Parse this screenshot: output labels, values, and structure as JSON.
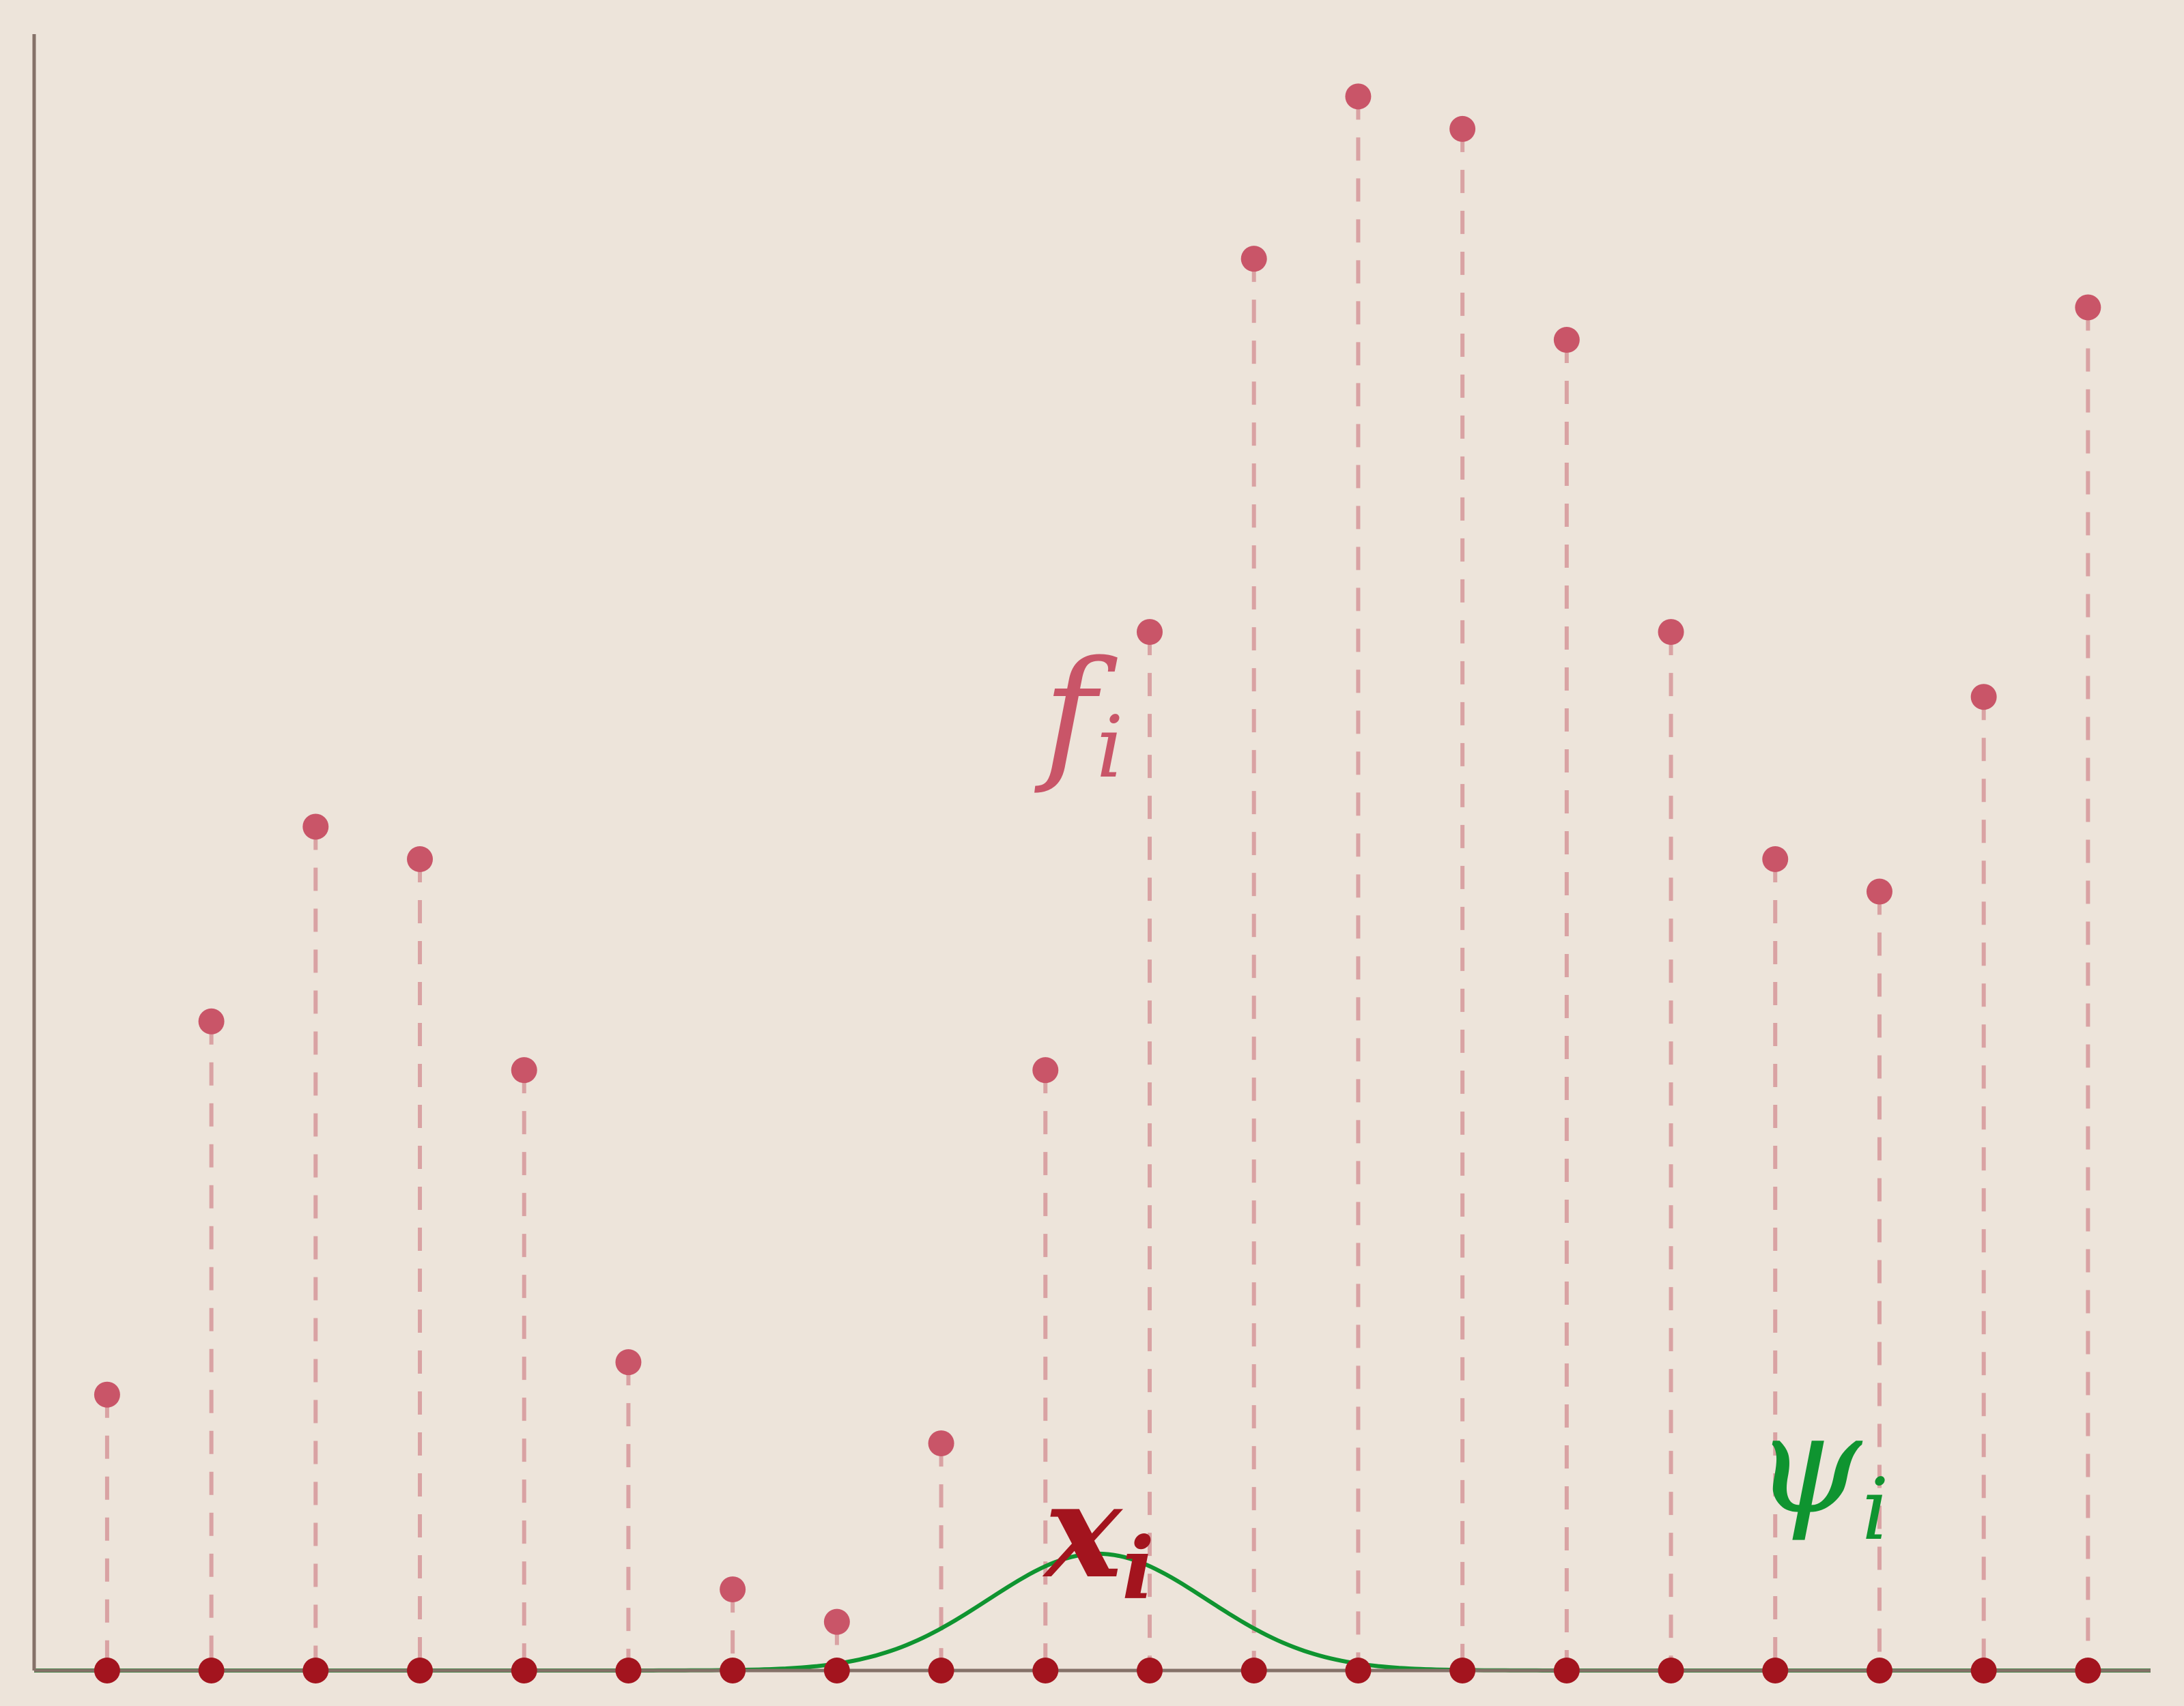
{
  "chart_data": {
    "type": "scatter",
    "title": "",
    "xlabel": "",
    "ylabel": "",
    "x": [
      1,
      2,
      3,
      4,
      5,
      6,
      7,
      8,
      9,
      10,
      11,
      12,
      13,
      14,
      15,
      16,
      17,
      18,
      19,
      20
    ],
    "xlim": [
      0.3,
      20.6
    ],
    "ylim": [
      0,
      1
    ],
    "series": [
      {
        "values": [
          0.17,
          0.4,
          0.52,
          0.5,
          0.37,
          0.19,
          0.05,
          0.03,
          0.14,
          0.37,
          0.64,
          0.87,
          0.97,
          0.95,
          0.82,
          0.64,
          0.5,
          0.48,
          0.6,
          0.84
        ]
      }
    ],
    "kernel": {
      "center": 10.5,
      "sigma": 1.05,
      "peak": 0.072
    },
    "annotations": {
      "f": {
        "base": "f",
        "sub": "i"
      },
      "x": {
        "base": "x",
        "sub": "i"
      },
      "psi": {
        "base": "ψ",
        "sub": "i"
      }
    },
    "colors": {
      "background": "#EDE4DA",
      "axis": "#857168",
      "points": "#C95568",
      "stems": "#D9A2A3",
      "nodes": "#A3141E",
      "kernel": "#0F9430"
    },
    "grid": false,
    "legend": "none"
  }
}
